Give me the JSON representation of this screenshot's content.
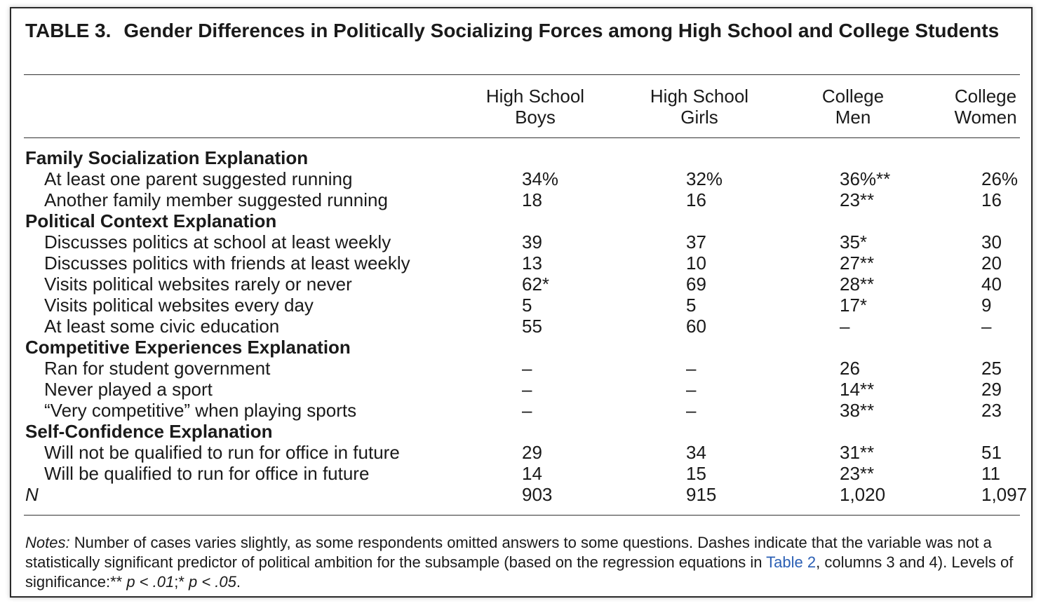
{
  "title": {
    "label": "TABLE 3.",
    "text": "Gender Differences in Politically Socializing Forces among High School and College Students"
  },
  "columns": [
    {
      "line1": "High School",
      "line2": "Boys"
    },
    {
      "line1": "High School",
      "line2": "Girls"
    },
    {
      "line1": "College",
      "line2": "Men"
    },
    {
      "line1": "College",
      "line2": "Women"
    }
  ],
  "rows": [
    {
      "type": "section",
      "label": "Family Socialization Explanation",
      "values": [
        "",
        "",
        "",
        ""
      ]
    },
    {
      "type": "item",
      "label": "At least one parent suggested running",
      "values": [
        "34%",
        "32%",
        "36%**",
        "26%"
      ]
    },
    {
      "type": "item",
      "label": "Another family member suggested running",
      "values": [
        "18",
        "16",
        "23**",
        "16"
      ]
    },
    {
      "type": "section",
      "label": "Political Context Explanation",
      "values": [
        "",
        "",
        "",
        ""
      ]
    },
    {
      "type": "item",
      "label": "Discusses politics at school at least weekly",
      "values": [
        "39",
        "37",
        "35*",
        "30"
      ]
    },
    {
      "type": "item",
      "label": "Discusses politics with friends at least weekly",
      "values": [
        "13",
        "10",
        "27**",
        "20"
      ]
    },
    {
      "type": "item",
      "label": "Visits political websites rarely or never",
      "values": [
        "62*",
        "69",
        "28**",
        "40"
      ]
    },
    {
      "type": "item",
      "label": "Visits political websites every day",
      "values": [
        "5",
        "5",
        "17*",
        "9"
      ]
    },
    {
      "type": "item",
      "label": "At least some civic education",
      "values": [
        "55",
        "60",
        "–",
        "–"
      ]
    },
    {
      "type": "section",
      "label": "Competitive Experiences Explanation",
      "values": [
        "",
        "",
        "",
        ""
      ]
    },
    {
      "type": "item",
      "label": "Ran for student government",
      "values": [
        "–",
        "–",
        "26",
        "25"
      ]
    },
    {
      "type": "item",
      "label": "Never played a sport",
      "values": [
        "–",
        "–",
        "14**",
        "29"
      ]
    },
    {
      "type": "item",
      "label": "“Very competitive” when playing sports",
      "values": [
        "–",
        "–",
        "38**",
        "23"
      ]
    },
    {
      "type": "section",
      "label": "Self-Confidence Explanation",
      "values": [
        "",
        "",
        "",
        ""
      ]
    },
    {
      "type": "item",
      "label": "Will not be qualified to run for office in future",
      "values": [
        "29",
        "34",
        "31**",
        "51"
      ]
    },
    {
      "type": "item",
      "label": "Will be qualified to run for office in future",
      "values": [
        "14",
        "15",
        "23**",
        "11"
      ]
    },
    {
      "type": "n",
      "label": "N",
      "values": [
        "903",
        "915",
        "1,020",
        "1,097"
      ]
    }
  ],
  "notes": {
    "label": "Notes:",
    "text1": " Number of cases varies slightly, as some respondents omitted answers to some questions. Dashes indicate that the variable was not a statistically significant predictor of political ambition for the subsample (based on the regression equations in ",
    "link": "Table 2",
    "text2": ", columns 3 and 4). Levels of significance:** ",
    "p1": "p < .01",
    "sep": ";* ",
    "p2": "p < .05",
    "end": "."
  }
}
